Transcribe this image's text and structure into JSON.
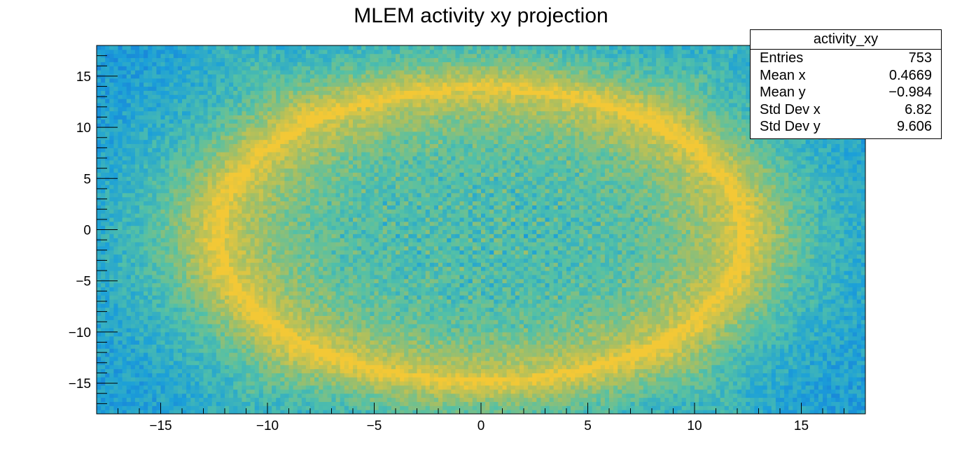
{
  "chart_data": {
    "type": "heatmap",
    "title": "MLEM activity xy projection",
    "xlabel": "",
    "ylabel": "",
    "xlim": [
      -18,
      18
    ],
    "ylim": [
      -18,
      18
    ],
    "x_ticks": [
      -15,
      -10,
      -5,
      0,
      5,
      10,
      15
    ],
    "y_ticks": [
      -15,
      -10,
      -5,
      0,
      5,
      10,
      15
    ],
    "x_tick_labels": [
      "−15",
      "−10",
      "−5",
      "0",
      "5",
      "10",
      "15"
    ],
    "y_tick_labels": [
      "−15",
      "−10",
      "−5",
      "0",
      "5",
      "10",
      "15"
    ],
    "grid": false,
    "bins": {
      "nx": 180,
      "ny": 90
    },
    "structure": {
      "shape": "ellipse",
      "center": [
        0,
        -0.5
      ],
      "semi_axis_x": 12,
      "semi_axis_y": 14,
      "ring_level": "high",
      "interior_level": "medium",
      "outside_level": "low"
    },
    "colormap": [
      "#1464dc",
      "#1ca0d8",
      "#52c0a8",
      "#aabf60",
      "#f3c836"
    ],
    "stats": {
      "name": "activity_xy",
      "rows": [
        {
          "label": "Entries",
          "value": "753"
        },
        {
          "label": "Mean x",
          "value": "0.4669"
        },
        {
          "label": "Mean y",
          "value": "−0.984"
        },
        {
          "label": "Std Dev x",
          "value": "6.82"
        },
        {
          "label": "Std Dev y",
          "value": "9.606"
        }
      ]
    }
  }
}
